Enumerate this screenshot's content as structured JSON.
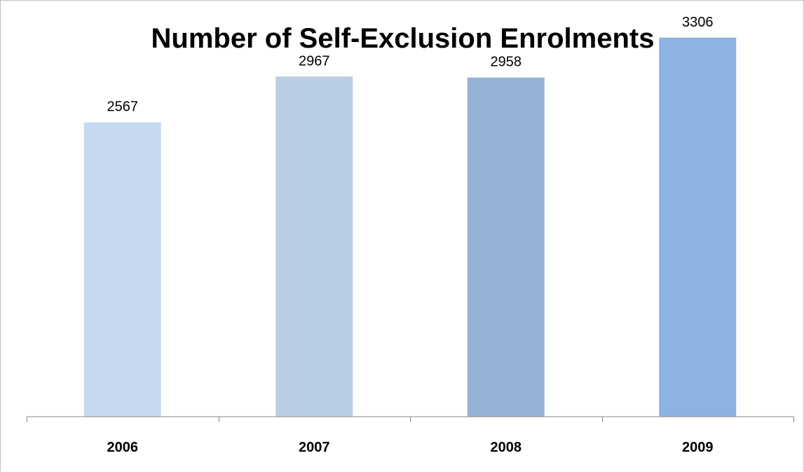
{
  "chart_data": {
    "type": "bar",
    "title": "Number of Self-Exclusion Enrolments",
    "xlabel": "",
    "ylabel": "",
    "categories": [
      "2006",
      "2007",
      "2008",
      "2009"
    ],
    "values": [
      2567,
      2967,
      2958,
      3306
    ],
    "bar_colors": [
      "#c6d9f1",
      "#b9cde5",
      "#95b3d7",
      "#8db3e2"
    ],
    "axis_color": "#868686",
    "ylim": [
      0,
      3500
    ],
    "grid": false,
    "legend": "none",
    "data_labels": true
  }
}
